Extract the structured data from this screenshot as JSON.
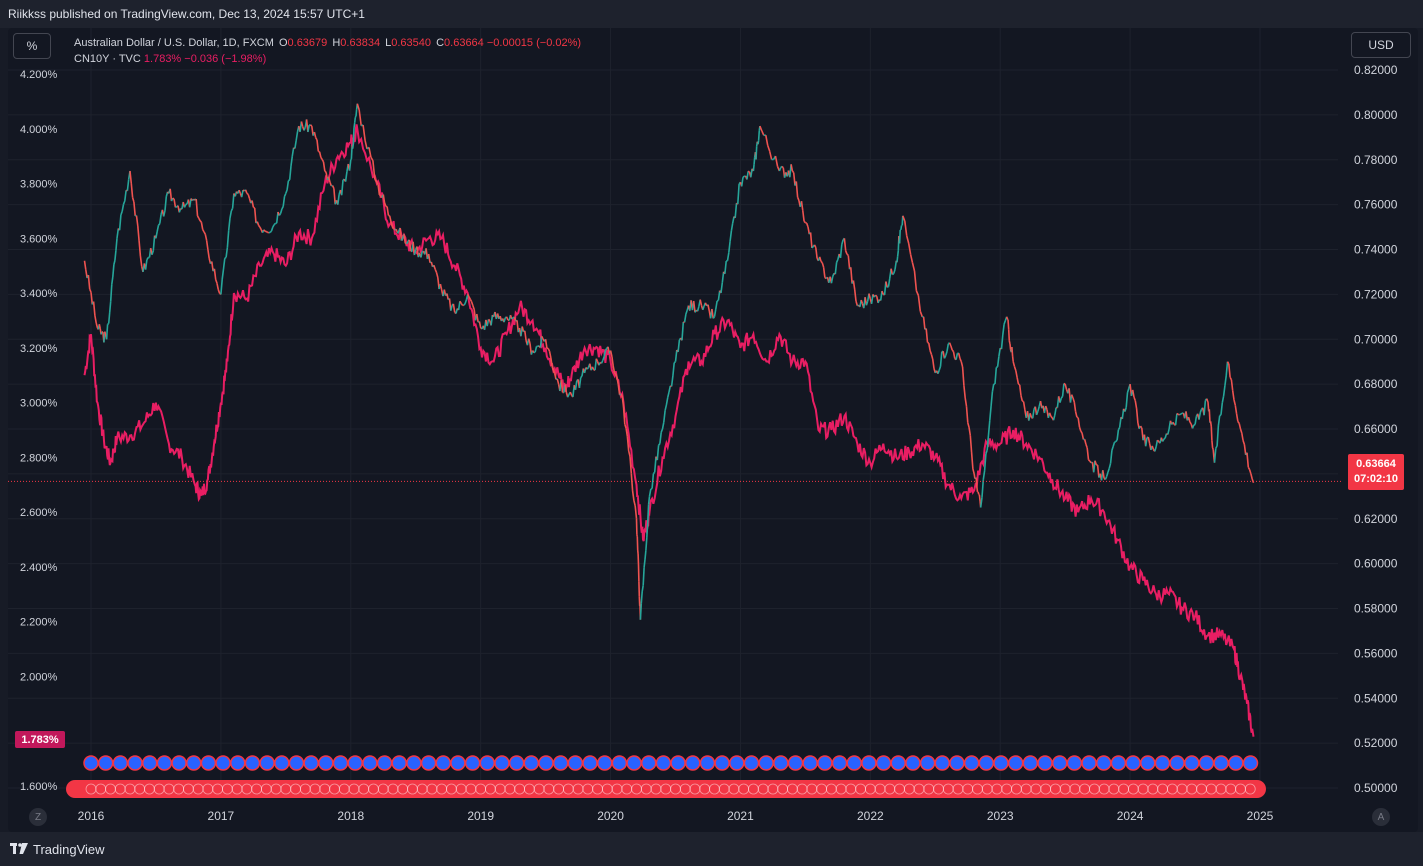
{
  "publisher_line": "Riikkss published on TradingView.com, Dec 13, 2024 15:57 UTC+1",
  "toolbar": {
    "percent_label": "%",
    "currency_label": "USD",
    "left_corner": "Z",
    "right_corner": "A"
  },
  "footer": {
    "brand": "TradingView"
  },
  "legend": {
    "main": {
      "name": "Australian Dollar / U.S. Dollar, 1D, FXCM",
      "o_label": "O",
      "o": "0.63679",
      "h_label": "H",
      "h": "0.63834",
      "l_label": "L",
      "l": "0.63540",
      "c_label": "C",
      "c": "0.63664",
      "change": "−0.00015 (−0.02%)"
    },
    "overlay": {
      "name": "CN10Y · TVC",
      "value": "1.783%",
      "change": "−0.036 (−1.98%)"
    }
  },
  "price_tag": {
    "price": "0.63664",
    "countdown": "07:02:10"
  },
  "cn_tag": "1.783%",
  "colors": {
    "background": "#131722",
    "grid": "#1e222d",
    "candle_up": "#26a69a",
    "candle_down": "#ef5350",
    "cn10y_line": "#e91e63",
    "price_line": "#f23645"
  },
  "chart_data": {
    "type": "line",
    "title": "Australian Dollar / U.S. Dollar, 1D, FXCM",
    "x_ticks": [
      "2016",
      "2017",
      "2018",
      "2019",
      "2020",
      "2021",
      "2022",
      "2023",
      "2024",
      "2025"
    ],
    "right_axis": {
      "ticks": [
        "0.82000",
        "0.80000",
        "0.78000",
        "0.76000",
        "0.74000",
        "0.72000",
        "0.70000",
        "0.68000",
        "0.66000",
        "0.64000",
        "0.62000",
        "0.60000",
        "0.58000",
        "0.56000",
        "0.54000",
        "0.52000",
        "0.50000"
      ],
      "range": [
        0.5,
        0.82
      ]
    },
    "left_axis": {
      "ticks": [
        "4.200%",
        "4.000%",
        "3.800%",
        "3.600%",
        "3.400%",
        "3.200%",
        "3.000%",
        "2.800%",
        "2.600%",
        "2.400%",
        "2.200%",
        "2.000%",
        "1.600%"
      ],
      "range": [
        1.6,
        4.2
      ]
    },
    "grid": true,
    "series": [
      {
        "name": "Australian Dollar / U.S. Dollar, 1D, FXCM",
        "axis": "right",
        "points": [
          [
            2015.95,
            0.735
          ],
          [
            2016.05,
            0.705
          ],
          [
            2016.12,
            0.7
          ],
          [
            2016.2,
            0.745
          ],
          [
            2016.3,
            0.775
          ],
          [
            2016.4,
            0.73
          ],
          [
            2016.5,
            0.745
          ],
          [
            2016.6,
            0.765
          ],
          [
            2016.7,
            0.758
          ],
          [
            2016.8,
            0.762
          ],
          [
            2016.9,
            0.74
          ],
          [
            2017.0,
            0.72
          ],
          [
            2017.1,
            0.765
          ],
          [
            2017.2,
            0.765
          ],
          [
            2017.3,
            0.75
          ],
          [
            2017.4,
            0.75
          ],
          [
            2017.5,
            0.765
          ],
          [
            2017.6,
            0.795
          ],
          [
            2017.7,
            0.795
          ],
          [
            2017.8,
            0.775
          ],
          [
            2017.9,
            0.76
          ],
          [
            2018.0,
            0.78
          ],
          [
            2018.05,
            0.805
          ],
          [
            2018.2,
            0.77
          ],
          [
            2018.3,
            0.755
          ],
          [
            2018.4,
            0.745
          ],
          [
            2018.5,
            0.74
          ],
          [
            2018.6,
            0.738
          ],
          [
            2018.7,
            0.722
          ],
          [
            2018.8,
            0.712
          ],
          [
            2018.9,
            0.72
          ],
          [
            2019.0,
            0.705
          ],
          [
            2019.1,
            0.71
          ],
          [
            2019.2,
            0.71
          ],
          [
            2019.3,
            0.705
          ],
          [
            2019.4,
            0.695
          ],
          [
            2019.5,
            0.7
          ],
          [
            2019.6,
            0.68
          ],
          [
            2019.7,
            0.675
          ],
          [
            2019.8,
            0.685
          ],
          [
            2019.9,
            0.69
          ],
          [
            2020.0,
            0.695
          ],
          [
            2020.1,
            0.67
          ],
          [
            2020.2,
            0.62
          ],
          [
            2020.23,
            0.575
          ],
          [
            2020.3,
            0.63
          ],
          [
            2020.4,
            0.66
          ],
          [
            2020.5,
            0.69
          ],
          [
            2020.6,
            0.715
          ],
          [
            2020.7,
            0.715
          ],
          [
            2020.8,
            0.71
          ],
          [
            2020.9,
            0.735
          ],
          [
            2021.0,
            0.77
          ],
          [
            2021.1,
            0.775
          ],
          [
            2021.15,
            0.795
          ],
          [
            2021.3,
            0.775
          ],
          [
            2021.4,
            0.775
          ],
          [
            2021.5,
            0.752
          ],
          [
            2021.6,
            0.735
          ],
          [
            2021.7,
            0.725
          ],
          [
            2021.8,
            0.745
          ],
          [
            2021.9,
            0.715
          ],
          [
            2022.0,
            0.718
          ],
          [
            2022.1,
            0.72
          ],
          [
            2022.2,
            0.735
          ],
          [
            2022.25,
            0.755
          ],
          [
            2022.4,
            0.71
          ],
          [
            2022.5,
            0.685
          ],
          [
            2022.6,
            0.698
          ],
          [
            2022.7,
            0.69
          ],
          [
            2022.8,
            0.64
          ],
          [
            2022.85,
            0.625
          ],
          [
            2022.95,
            0.68
          ],
          [
            2023.05,
            0.71
          ],
          [
            2023.1,
            0.69
          ],
          [
            2023.2,
            0.665
          ],
          [
            2023.3,
            0.67
          ],
          [
            2023.4,
            0.665
          ],
          [
            2023.5,
            0.68
          ],
          [
            2023.6,
            0.665
          ],
          [
            2023.7,
            0.645
          ],
          [
            2023.8,
            0.638
          ],
          [
            2023.9,
            0.655
          ],
          [
            2024.0,
            0.68
          ],
          [
            2024.1,
            0.655
          ],
          [
            2024.2,
            0.652
          ],
          [
            2024.3,
            0.66
          ],
          [
            2024.4,
            0.667
          ],
          [
            2024.5,
            0.662
          ],
          [
            2024.6,
            0.672
          ],
          [
            2024.65,
            0.645
          ],
          [
            2024.75,
            0.69
          ],
          [
            2024.85,
            0.66
          ],
          [
            2024.95,
            0.636
          ]
        ]
      },
      {
        "name": "CN10Y · TVC",
        "axis": "left",
        "points": [
          [
            2015.95,
            3.1
          ],
          [
            2016.0,
            3.25
          ],
          [
            2016.05,
            3.0
          ],
          [
            2016.1,
            2.86
          ],
          [
            2016.15,
            2.78
          ],
          [
            2016.2,
            2.87
          ],
          [
            2016.3,
            2.88
          ],
          [
            2016.4,
            2.92
          ],
          [
            2016.5,
            3.0
          ],
          [
            2016.6,
            2.85
          ],
          [
            2016.7,
            2.8
          ],
          [
            2016.8,
            2.7
          ],
          [
            2016.85,
            2.66
          ],
          [
            2016.9,
            2.72
          ],
          [
            2016.95,
            2.86
          ],
          [
            2017.0,
            3.0
          ],
          [
            2017.05,
            3.15
          ],
          [
            2017.1,
            3.4
          ],
          [
            2017.2,
            3.38
          ],
          [
            2017.3,
            3.5
          ],
          [
            2017.4,
            3.55
          ],
          [
            2017.5,
            3.5
          ],
          [
            2017.6,
            3.62
          ],
          [
            2017.7,
            3.6
          ],
          [
            2017.8,
            3.8
          ],
          [
            2017.9,
            3.9
          ],
          [
            2018.0,
            3.95
          ],
          [
            2018.05,
            4.0
          ],
          [
            2018.2,
            3.8
          ],
          [
            2018.3,
            3.65
          ],
          [
            2018.4,
            3.6
          ],
          [
            2018.5,
            3.55
          ],
          [
            2018.6,
            3.6
          ],
          [
            2018.7,
            3.6
          ],
          [
            2018.8,
            3.5
          ],
          [
            2018.9,
            3.4
          ],
          [
            2019.0,
            3.2
          ],
          [
            2019.1,
            3.15
          ],
          [
            2019.2,
            3.25
          ],
          [
            2019.3,
            3.35
          ],
          [
            2019.4,
            3.3
          ],
          [
            2019.5,
            3.2
          ],
          [
            2019.6,
            3.1
          ],
          [
            2019.65,
            3.05
          ],
          [
            2019.7,
            3.1
          ],
          [
            2019.8,
            3.2
          ],
          [
            2019.9,
            3.2
          ],
          [
            2020.0,
            3.15
          ],
          [
            2020.1,
            3.0
          ],
          [
            2020.2,
            2.7
          ],
          [
            2020.25,
            2.5
          ],
          [
            2020.3,
            2.6
          ],
          [
            2020.4,
            2.8
          ],
          [
            2020.5,
            2.95
          ],
          [
            2020.6,
            3.15
          ],
          [
            2020.7,
            3.15
          ],
          [
            2020.8,
            3.25
          ],
          [
            2020.9,
            3.3
          ],
          [
            2021.0,
            3.2
          ],
          [
            2021.1,
            3.25
          ],
          [
            2021.2,
            3.15
          ],
          [
            2021.3,
            3.25
          ],
          [
            2021.4,
            3.15
          ],
          [
            2021.5,
            3.15
          ],
          [
            2021.6,
            2.9
          ],
          [
            2021.7,
            2.9
          ],
          [
            2021.8,
            2.95
          ],
          [
            2021.9,
            2.85
          ],
          [
            2022.0,
            2.78
          ],
          [
            2022.1,
            2.85
          ],
          [
            2022.2,
            2.8
          ],
          [
            2022.3,
            2.82
          ],
          [
            2022.4,
            2.85
          ],
          [
            2022.5,
            2.8
          ],
          [
            2022.6,
            2.7
          ],
          [
            2022.7,
            2.65
          ],
          [
            2022.8,
            2.68
          ],
          [
            2022.9,
            2.85
          ],
          [
            2023.0,
            2.85
          ],
          [
            2023.1,
            2.9
          ],
          [
            2023.2,
            2.85
          ],
          [
            2023.3,
            2.8
          ],
          [
            2023.4,
            2.72
          ],
          [
            2023.5,
            2.65
          ],
          [
            2023.6,
            2.6
          ],
          [
            2023.7,
            2.65
          ],
          [
            2023.8,
            2.6
          ],
          [
            2023.9,
            2.5
          ],
          [
            2024.0,
            2.4
          ],
          [
            2024.1,
            2.35
          ],
          [
            2024.2,
            2.3
          ],
          [
            2024.3,
            2.3
          ],
          [
            2024.4,
            2.25
          ],
          [
            2024.5,
            2.22
          ],
          [
            2024.6,
            2.15
          ],
          [
            2024.7,
            2.15
          ],
          [
            2024.8,
            2.1
          ],
          [
            2024.85,
            2.0
          ],
          [
            2024.9,
            1.9
          ],
          [
            2024.95,
            1.78
          ]
        ]
      }
    ],
    "current_price_line": 0.63664
  }
}
